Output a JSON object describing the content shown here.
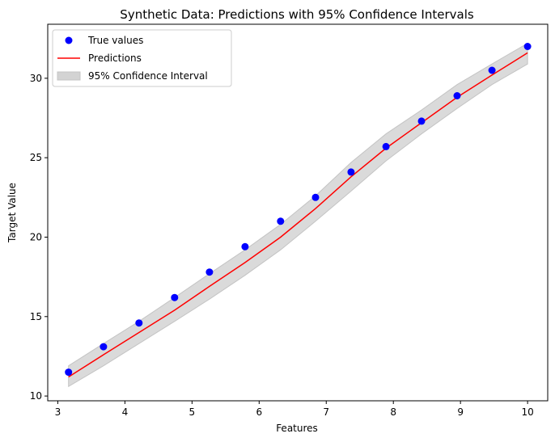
{
  "chart_data": {
    "type": "line",
    "title": "Synthetic Data: Predictions with 95% Confidence Intervals",
    "xlabel": "Features",
    "ylabel": "Target Value",
    "xlim": [
      2.85,
      10.3
    ],
    "ylim": [
      9.7,
      33.4
    ],
    "xticks": [
      3,
      4,
      5,
      6,
      7,
      8,
      9,
      10
    ],
    "yticks": [
      10,
      15,
      20,
      25,
      30
    ],
    "grid": false,
    "legend_position": "top-left",
    "x": [
      3.16,
      3.68,
      4.21,
      4.74,
      5.26,
      5.79,
      6.32,
      6.84,
      7.37,
      7.89,
      8.42,
      8.95,
      9.47,
      10.0
    ],
    "series": [
      {
        "name": "True values",
        "type": "scatter",
        "color": "#0000ff",
        "values": [
          11.5,
          13.1,
          14.6,
          16.2,
          17.8,
          19.4,
          21.0,
          22.5,
          24.1,
          25.7,
          27.3,
          28.9,
          30.5,
          32.0
        ]
      },
      {
        "name": "Predictions",
        "type": "line",
        "color": "#ff0000",
        "values": [
          11.2,
          12.6,
          14.0,
          15.4,
          16.9,
          18.4,
          20.0,
          21.8,
          23.8,
          25.6,
          27.2,
          28.8,
          30.2,
          31.6
        ]
      },
      {
        "name": "95% Confidence Interval",
        "type": "band",
        "color": "#d3d3d3",
        "lower": [
          10.6,
          11.9,
          13.3,
          14.7,
          16.1,
          17.6,
          19.2,
          21.0,
          22.9,
          24.8,
          26.5,
          28.1,
          29.6,
          30.9
        ],
        "upper": [
          11.9,
          13.3,
          14.7,
          16.2,
          17.7,
          19.2,
          20.8,
          22.6,
          24.7,
          26.5,
          28.0,
          29.6,
          30.9,
          32.2
        ]
      }
    ]
  }
}
